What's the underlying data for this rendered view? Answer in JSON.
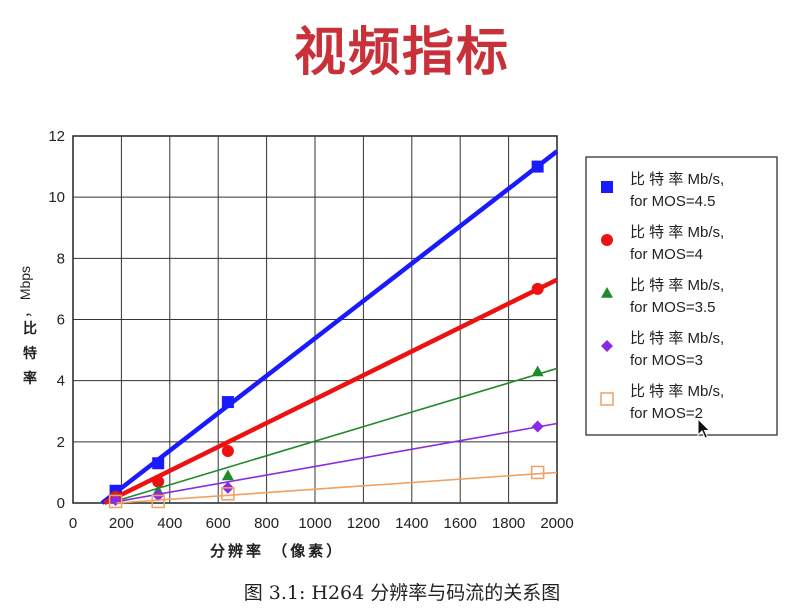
{
  "slide_title": "视频指标",
  "caption": "图 3.1: H264 分辨率与码流的关系图",
  "chart_data": {
    "type": "line",
    "title": "",
    "xlabel": "分辨率 （像素）",
    "ylabel": "比特率，Mbps",
    "xlim": [
      0,
      2000
    ],
    "ylim": [
      0,
      12
    ],
    "x_ticks": [
      0,
      200,
      400,
      600,
      800,
      1000,
      1200,
      1400,
      1600,
      1800,
      2000
    ],
    "y_ticks": [
      0,
      2,
      4,
      6,
      8,
      10,
      12
    ],
    "grid": true,
    "legend_position": "right",
    "series": [
      {
        "name": "比特率 Mb/s, for MOS=4.5",
        "legend_line1": "比 特 率 Mb/s,",
        "legend_line2": "for MOS=4.5",
        "color": "#1a1aff",
        "marker": "square",
        "width": 4.5,
        "x": [
          176,
          352,
          640,
          1920
        ],
        "y": [
          0.4,
          1.3,
          3.3,
          11
        ],
        "trend": [
          [
            120,
            0
          ],
          [
            2000,
            11.5
          ]
        ]
      },
      {
        "name": "比特率 Mb/s, for MOS=4",
        "legend_line1": "比 特 率 Mb/s,",
        "legend_line2": "for MOS=4",
        "color": "#ee1111",
        "marker": "circle",
        "width": 4.5,
        "x": [
          176,
          352,
          640,
          1920
        ],
        "y": [
          0.2,
          0.7,
          1.7,
          7
        ],
        "trend": [
          [
            130,
            0
          ],
          [
            2000,
            7.3
          ]
        ]
      },
      {
        "name": "比特率 Mb/s, for MOS=3.5",
        "legend_line1": "比 特 率 Mb/s,",
        "legend_line2": "for MOS=3.5",
        "color": "#1f8a2a",
        "marker": "triangle",
        "width": 1.6,
        "x": [
          176,
          352,
          640,
          1920
        ],
        "y": [
          0.15,
          0.4,
          0.9,
          4.3
        ],
        "trend": [
          [
            150,
            0
          ],
          [
            2000,
            4.4
          ]
        ]
      },
      {
        "name": "比特率 Mb/s, for MOS=3",
        "legend_line1": "比 特 率 Mb/s,",
        "legend_line2": "for MOS=3",
        "color": "#8a2be2",
        "marker": "diamond",
        "width": 1.6,
        "x": [
          176,
          352,
          640,
          1920
        ],
        "y": [
          0.1,
          0.25,
          0.5,
          2.5
        ],
        "trend": [
          [
            150,
            0
          ],
          [
            2000,
            2.6
          ]
        ]
      },
      {
        "name": "比特率 Mb/s, for MOS=2",
        "legend_line1": "比 特 率 Mb/s,",
        "legend_line2": "for MOS=2",
        "color": "#f0a060",
        "marker": "open-square",
        "width": 1.6,
        "x": [
          176,
          352,
          640,
          1920
        ],
        "y": [
          0.05,
          0.05,
          0.3,
          1.0
        ],
        "trend": [
          [
            180,
            0
          ],
          [
            2000,
            1.0
          ]
        ]
      }
    ]
  }
}
